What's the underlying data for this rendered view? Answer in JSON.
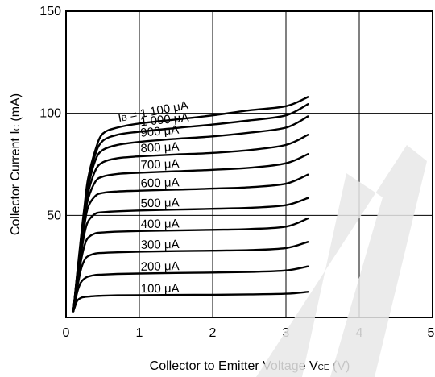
{
  "chart_data": {
    "type": "line",
    "title": "",
    "xlabel": {
      "main": "Collector to Emitter Voltage  V",
      "sub": "CE",
      "unit": " (V)"
    },
    "ylabel": {
      "main": "Collector Current  I",
      "sub": "C",
      "unit": " (mA)"
    },
    "xlim": [
      0,
      5
    ],
    "ylim": [
      0,
      150
    ],
    "x_ticks": [
      0,
      1,
      2,
      3,
      4,
      5
    ],
    "y_ticks": [
      50,
      100,
      150
    ],
    "grid": true,
    "x": [
      0.1,
      0.15,
      0.2,
      0.25,
      0.3,
      0.4,
      0.5,
      0.7,
      1.0,
      1.5,
      2.0,
      2.5,
      3.0,
      3.3
    ],
    "series": [
      {
        "name": "100 μA",
        "values": [
          3,
          8,
          9.5,
          10,
          10.2,
          10.5,
          10.6,
          10.8,
          10.9,
          11.0,
          11.1,
          11.3,
          11.6,
          12.5
        ]
      },
      {
        "name": "200 μA",
        "values": [
          3,
          12,
          17,
          19,
          20,
          20.8,
          21.0,
          21.3,
          21.5,
          21.8,
          22.0,
          22.3,
          23.0,
          25.0
        ]
      },
      {
        "name": "300 μA",
        "values": [
          3,
          14,
          23,
          28,
          30,
          31.3,
          31.6,
          31.9,
          32.2,
          32.5,
          32.7,
          33.0,
          34.0,
          37.0
        ]
      },
      {
        "name": "400 μA",
        "values": [
          3,
          16,
          27,
          35,
          39,
          41.2,
          41.6,
          42.0,
          42.3,
          42.6,
          42.9,
          43.3,
          44.5,
          48.5
        ]
      },
      {
        "name": "500 μA",
        "values": [
          3,
          17,
          30,
          41,
          47,
          50.8,
          51.5,
          52.0,
          52.4,
          52.8,
          53.2,
          53.7,
          55.0,
          58.5
        ]
      },
      {
        "name": "600 μA",
        "values": [
          3,
          18,
          32,
          45,
          54,
          59.5,
          61.0,
          61.7,
          62.1,
          62.6,
          63.1,
          63.8,
          65.5,
          70.0
        ]
      },
      {
        "name": "700 μA",
        "values": [
          3,
          19,
          34,
          48,
          58,
          66.5,
          69.0,
          70.3,
          70.9,
          71.6,
          72.3,
          73.3,
          75.5,
          80.0
        ]
      },
      {
        "name": "800 μA",
        "values": [
          3,
          19.5,
          35,
          50,
          61,
          72,
          76.0,
          78.0,
          78.9,
          79.8,
          80.6,
          82.0,
          84.5,
          89.5
        ]
      },
      {
        "name": "900 μA",
        "values": [
          3,
          20,
          36,
          52,
          64,
          77,
          82.0,
          84.5,
          86.0,
          87.5,
          88.7,
          90.5,
          93.0,
          98.5
        ]
      },
      {
        "name": "1 000 μA",
        "values": [
          3,
          20.5,
          37,
          53,
          66,
          80,
          86.5,
          89.5,
          91.0,
          92.8,
          94.5,
          96.5,
          99.0,
          104.5
        ]
      },
      {
        "name": "1 100 μA",
        "values": [
          3,
          21,
          38,
          54,
          68,
          82,
          90.0,
          93.0,
          95.0,
          97.0,
          99.0,
          101.5,
          103.5,
          108.0
        ]
      }
    ],
    "curve_labels": [
      {
        "prefix": "I",
        "sub": "B",
        "text": " = 1 100 μA"
      },
      {
        "text": "1 000 μA"
      },
      {
        "text": "900 μA"
      },
      {
        "text": "800 μA"
      },
      {
        "text": "700 μA"
      },
      {
        "text": "600 μA"
      },
      {
        "text": "500 μA"
      },
      {
        "text": "400 μA"
      },
      {
        "text": "300 μA"
      },
      {
        "text": "200 μA"
      },
      {
        "text": "100 μA"
      }
    ],
    "legend": "none"
  }
}
